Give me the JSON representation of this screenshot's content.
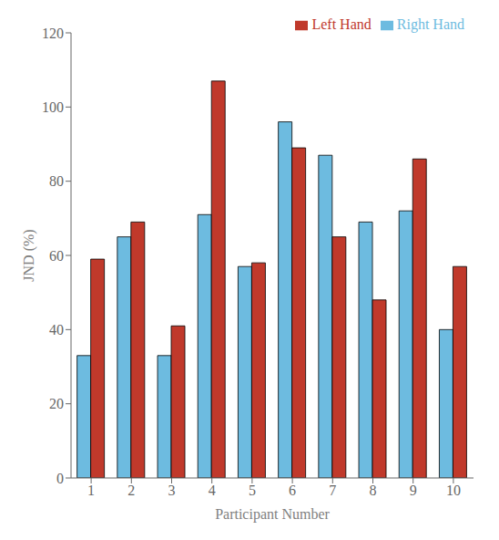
{
  "chart_data": {
    "type": "bar",
    "categories": [
      "1",
      "2",
      "3",
      "4",
      "5",
      "6",
      "7",
      "8",
      "9",
      "10"
    ],
    "series": [
      {
        "name": "Right Hand",
        "color": "#6DBBE0",
        "values": [
          33,
          65,
          33,
          71,
          57,
          96,
          87,
          69,
          72,
          40
        ]
      },
      {
        "name": "Left Hand",
        "color": "#C0392B",
        "values": [
          59,
          69,
          41,
          107,
          58,
          89,
          65,
          48,
          86,
          57
        ]
      }
    ],
    "xlabel": "Participant Number",
    "ylabel": "JND (%)",
    "ylim": [
      0,
      120
    ],
    "yticks": [
      0,
      20,
      40,
      60,
      80,
      100,
      120
    ],
    "grid": false,
    "legend": "upper right"
  }
}
